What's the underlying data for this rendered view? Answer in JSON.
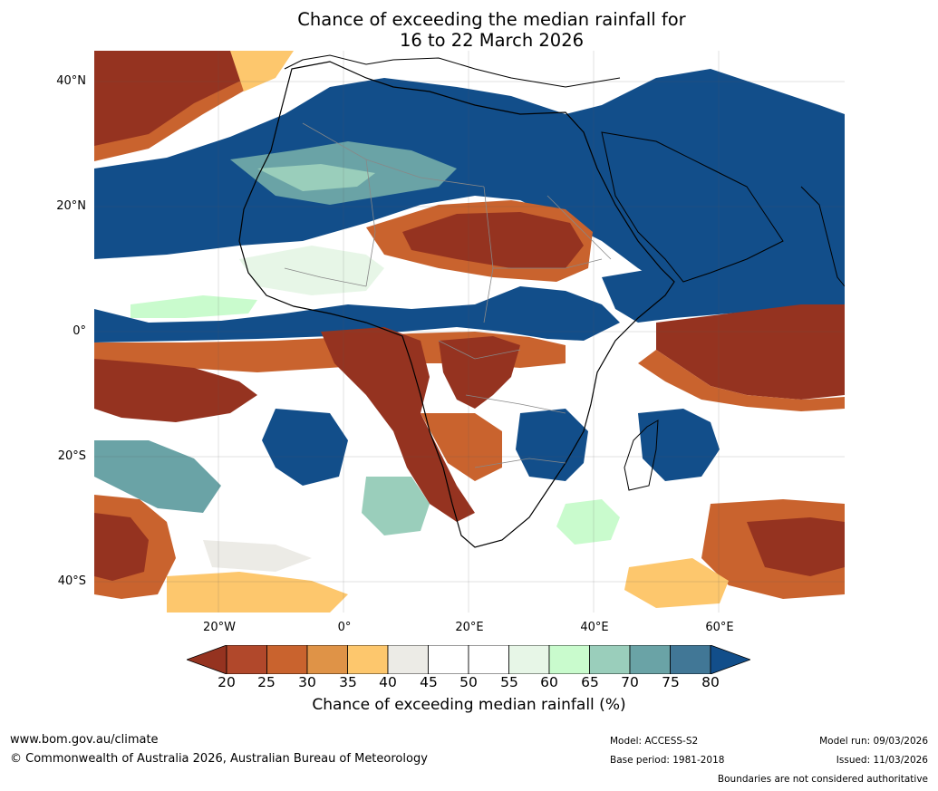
{
  "header": {
    "title_line1": "Chance of exceeding the median rainfall for",
    "title_line2": "16 to 22 March 2026"
  },
  "map": {
    "lat_labels": [
      "40°N",
      "20°N",
      "0°",
      "20°S",
      "40°S"
    ],
    "lon_labels": [
      "20°W",
      "0°",
      "20°E",
      "40°E",
      "60°E"
    ],
    "region": "Africa",
    "colors": {
      "dark_brown": "#953320",
      "brown": "#b1482b",
      "rust": "#c9632e",
      "orange": "#df9347",
      "light_orange": "#fdc76d",
      "grey": "#ecebe6",
      "white": "#ffffff",
      "pale_green": "#e7f6e7",
      "light_green": "#c9fbcd",
      "teal_light": "#9acebb",
      "teal": "#6aa3a6",
      "blue": "#417796",
      "dark_blue": "#124e8a"
    }
  },
  "colorbar": {
    "ticks": [
      "20",
      "25",
      "30",
      "35",
      "40",
      "45",
      "50",
      "55",
      "60",
      "65",
      "70",
      "75",
      "80"
    ],
    "label": "Chance of exceeding median rainfall (%)",
    "colors": [
      "#953320",
      "#b1482b",
      "#c9632e",
      "#df9347",
      "#fdc76d",
      "#ecebe6",
      "#ffffff",
      "#ffffff",
      "#e7f6e7",
      "#c9fbcd",
      "#9acebb",
      "#6aa3a6",
      "#417796",
      "#124e8a"
    ]
  },
  "footer": {
    "website": "www.bom.gov.au/climate",
    "copyright": "© Commonwealth of Australia 2026, Australian Bureau of Meteorology",
    "model": "Model: ACCESS-S2",
    "base_period": "Base period: 1981-2018",
    "model_run": "Model run: 09/03/2026",
    "issued": "Issued: 11/03/2026",
    "disclaimer": "Boundaries are not considered authoritative"
  }
}
